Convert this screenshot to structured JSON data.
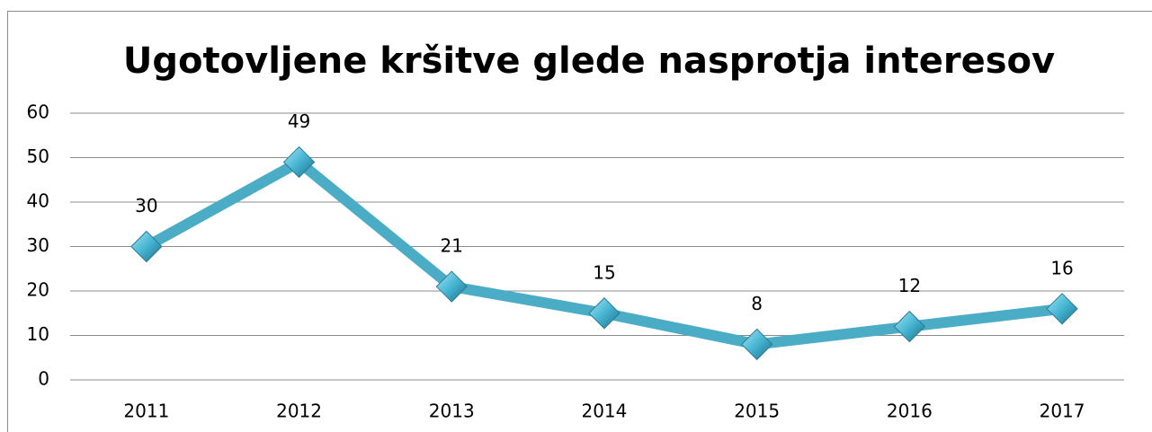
{
  "chart_data": {
    "type": "line",
    "title": "Ugotovljene kršitve glede nasprotja interesov",
    "categories": [
      "2011",
      "2012",
      "2013",
      "2014",
      "2015",
      "2016",
      "2017"
    ],
    "values": [
      30,
      49,
      21,
      15,
      8,
      12,
      16
    ],
    "color": "#4bacc6",
    "ylim": [
      0,
      60
    ],
    "yticks": [
      0,
      10,
      20,
      30,
      40,
      50,
      60
    ],
    "grid": true
  }
}
